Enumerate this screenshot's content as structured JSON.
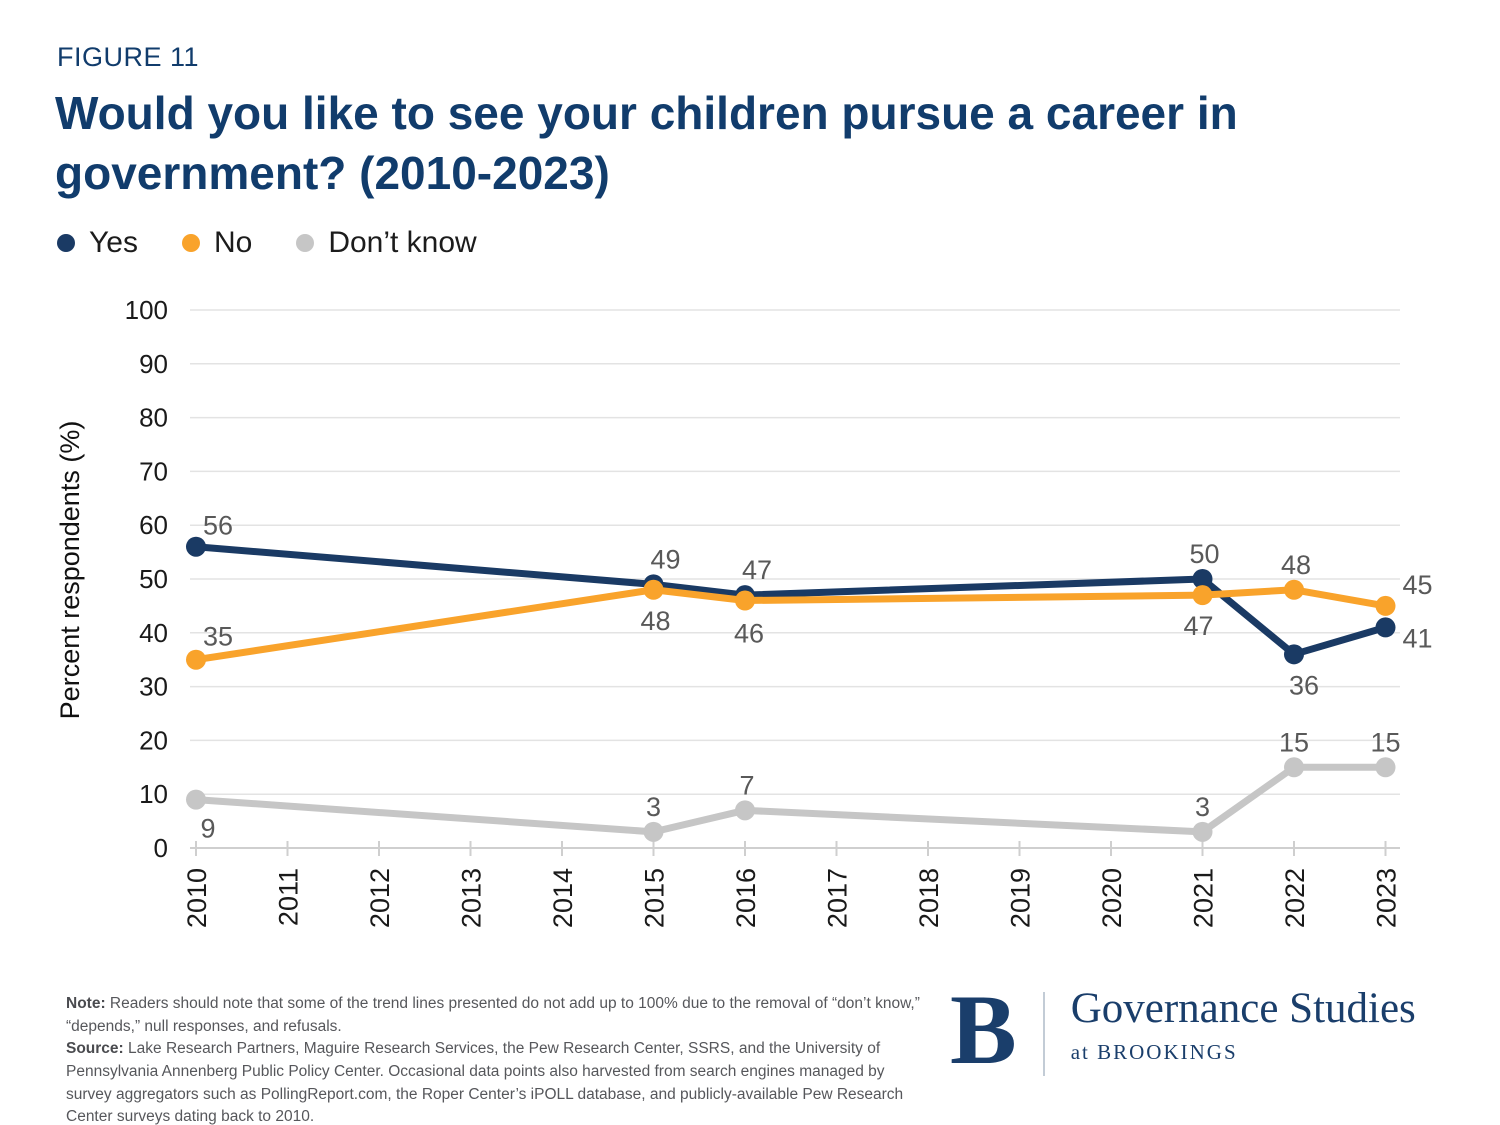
{
  "figure_label": "FIGURE 11",
  "chart_data": {
    "type": "line",
    "title": "Would you like to see your children pursue a career in government? (2010-2023)",
    "xlabel": "",
    "ylabel": "Percent respondents (%)",
    "ylim": [
      0,
      100
    ],
    "ytick_step": 10,
    "grid": true,
    "legend_position": "top-left",
    "categories": [
      "2010",
      "2011",
      "2012",
      "2013",
      "2014",
      "2015",
      "2016",
      "2017",
      "2018",
      "2019",
      "2020",
      "2021",
      "2022",
      "2023"
    ],
    "series": [
      {
        "name": "Yes",
        "color": "#1A3A64",
        "points": [
          {
            "year": "2010",
            "value": 56,
            "label_dx": 22,
            "label_dy": -12
          },
          {
            "year": "2015",
            "value": 49,
            "label_dx": 12,
            "label_dy": -16
          },
          {
            "year": "2016",
            "value": 47,
            "label_dx": 12,
            "label_dy": -16
          },
          {
            "year": "2021",
            "value": 50,
            "label_dx": 2,
            "label_dy": -16
          },
          {
            "year": "2022",
            "value": 36,
            "label_dx": 10,
            "label_dy": 40
          },
          {
            "year": "2023",
            "value": 41,
            "label_dx": 32,
            "label_dy": 20
          }
        ]
      },
      {
        "name": "No",
        "color": "#F9A32B",
        "points": [
          {
            "year": "2010",
            "value": 35,
            "label_dx": 22,
            "label_dy": -14
          },
          {
            "year": "2015",
            "value": 48,
            "label_dx": 2,
            "label_dy": 40
          },
          {
            "year": "2016",
            "value": 46,
            "label_dx": 4,
            "label_dy": 42
          },
          {
            "year": "2021",
            "value": 47,
            "label_dx": -4,
            "label_dy": 40
          },
          {
            "year": "2022",
            "value": 48,
            "label_dx": 2,
            "label_dy": -16
          },
          {
            "year": "2023",
            "value": 45,
            "label_dx": 32,
            "label_dy": -12
          }
        ]
      },
      {
        "name": "Don’t know",
        "color": "#C6C6C6",
        "points": [
          {
            "year": "2010",
            "value": 9,
            "label_dx": 12,
            "label_dy": 38
          },
          {
            "year": "2015",
            "value": 3,
            "label_dx": 0,
            "label_dy": -16
          },
          {
            "year": "2016",
            "value": 7,
            "label_dx": 2,
            "label_dy": -16
          },
          {
            "year": "2021",
            "value": 3,
            "label_dx": 0,
            "label_dy": -16
          },
          {
            "year": "2022",
            "value": 15,
            "label_dx": 0,
            "label_dy": -16
          },
          {
            "year": "2023",
            "value": 15,
            "label_dx": 0,
            "label_dy": -16
          }
        ]
      }
    ]
  },
  "styles": {
    "grid_color": "#E3E3E3",
    "axis_color": "#CFCFCF",
    "tick_text_color": "#1a1a1a",
    "data_label_color": "#595959"
  },
  "footer": {
    "note_label": "Note:",
    "note_text": " Readers should note that some of the trend lines presented do not add up to 100% due to the removal of “don’t know,” “depends,” null responses, and refusals.",
    "source_label": "Source:",
    "source_text": " Lake Research Partners, Maguire Research Services, the Pew Research Center, SSRS, and the University of Pennsylvania Annenberg Public Policy Center. Occasional data points also harvested from search engines managed by survey aggregators such as PollingReport.com, the Roper Center’s iPOLL database, and publicly-available Pew Research Center surveys dating back to 2010."
  },
  "logo": {
    "b": "B",
    "name": "Governance Studies",
    "sub": "at BROOKINGS"
  }
}
